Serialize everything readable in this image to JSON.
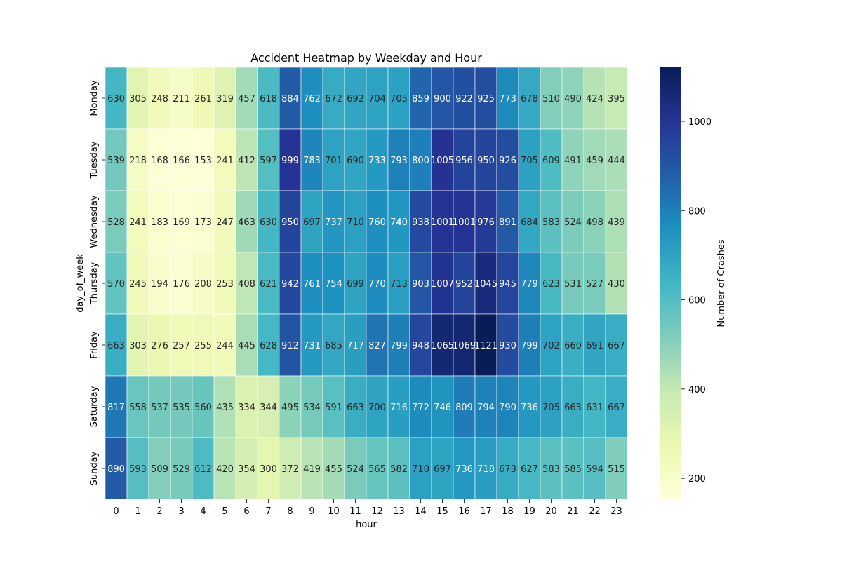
{
  "chart_data": {
    "type": "heatmap",
    "title": "Accident Heatmap by Weekday and Hour",
    "xlabel": "hour",
    "ylabel": "day_of_week",
    "x": [
      "0",
      "1",
      "2",
      "3",
      "4",
      "5",
      "6",
      "7",
      "8",
      "9",
      "10",
      "11",
      "12",
      "13",
      "14",
      "15",
      "16",
      "17",
      "18",
      "19",
      "20",
      "21",
      "22",
      "23"
    ],
    "y": [
      "Monday",
      "Tuesday",
      "Wednesday",
      "Thursday",
      "Friday",
      "Saturday",
      "Sunday"
    ],
    "values": [
      [
        630,
        305,
        248,
        211,
        261,
        319,
        457,
        618,
        884,
        762,
        672,
        692,
        704,
        705,
        859,
        900,
        922,
        925,
        773,
        678,
        510,
        490,
        424,
        395
      ],
      [
        539,
        218,
        168,
        166,
        153,
        241,
        412,
        597,
        999,
        783,
        701,
        690,
        733,
        793,
        800,
        1005,
        956,
        950,
        926,
        705,
        609,
        491,
        459,
        444
      ],
      [
        528,
        241,
        183,
        169,
        173,
        247,
        463,
        630,
        950,
        697,
        737,
        710,
        760,
        740,
        938,
        1001,
        1001,
        976,
        891,
        684,
        583,
        524,
        498,
        439
      ],
      [
        570,
        245,
        194,
        176,
        208,
        253,
        408,
        621,
        942,
        761,
        754,
        699,
        770,
        713,
        903,
        1007,
        952,
        1045,
        945,
        779,
        623,
        531,
        527,
        430
      ],
      [
        663,
        303,
        276,
        257,
        255,
        244,
        445,
        628,
        912,
        731,
        685,
        717,
        827,
        799,
        948,
        1065,
        1069,
        1121,
        930,
        799,
        702,
        660,
        691,
        667
      ],
      [
        817,
        558,
        537,
        535,
        560,
        435,
        334,
        344,
        495,
        534,
        591,
        663,
        700,
        716,
        772,
        746,
        809,
        794,
        790,
        736,
        705,
        663,
        631,
        667
      ],
      [
        890,
        593,
        509,
        529,
        612,
        420,
        354,
        300,
        372,
        419,
        455,
        524,
        565,
        582,
        710,
        697,
        736,
        718,
        673,
        627,
        583,
        585,
        594,
        515
      ]
    ],
    "colorbar": {
      "label": "Number of Crashes",
      "range": [
        153,
        1121
      ],
      "ticks": [
        "200",
        "400",
        "600",
        "800",
        "1000"
      ],
      "colormap": "YlGnBu"
    },
    "grid": false,
    "cell_borders": "white"
  }
}
